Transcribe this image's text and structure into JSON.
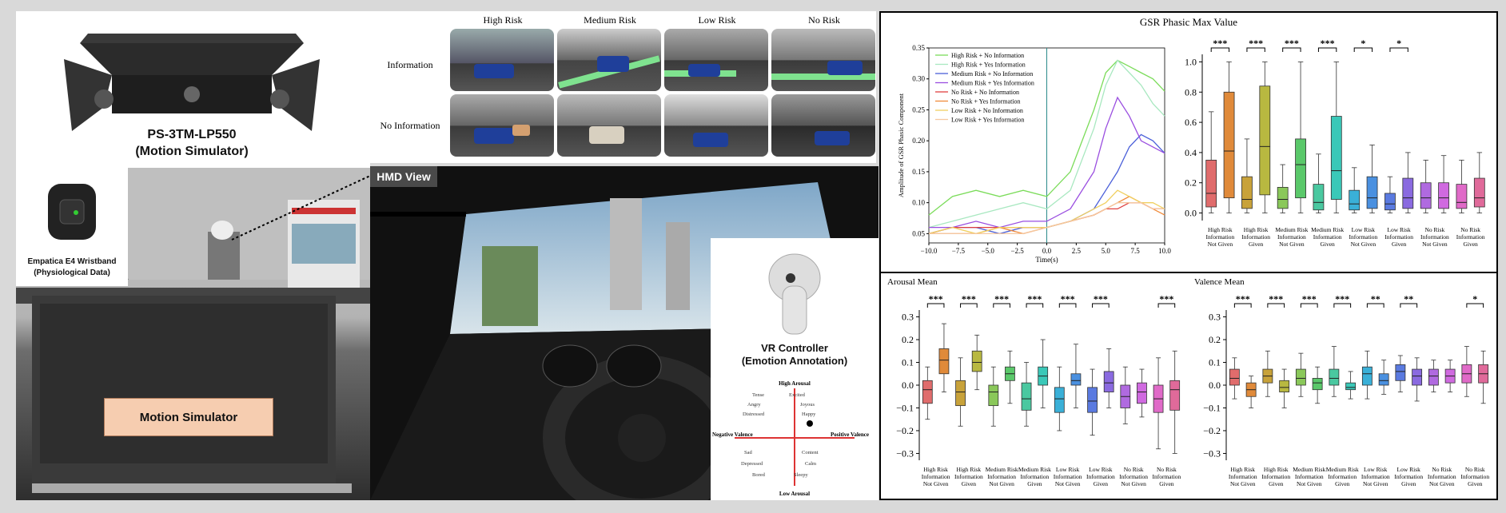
{
  "simulator": {
    "model": "PS-3TM-LP550",
    "caption": "(Motion Simulator)",
    "wristband_label": "Empatica E4 Wristband",
    "wristband_sub": "(Physiological Data)",
    "box_label": "Motion Simulator"
  },
  "scenarios": {
    "columns": [
      "High Risk",
      "Medium Risk",
      "Low Risk",
      "No Risk"
    ],
    "rows": [
      "Information",
      "No Information"
    ]
  },
  "hmd": {
    "tag": "HMD View",
    "controller_label": "VR Controller",
    "controller_sub": "(Emotion Annotation)",
    "circumplex": {
      "top": "High Arousal",
      "bottom": "Low Arousal",
      "left": "Negative Valence",
      "right": "Positive Valence",
      "emotions": [
        "Tense",
        "Excited",
        "Angry",
        "Joyous",
        "Distressed",
        "Happy",
        "Sad",
        "Content",
        "Depressed",
        "Calm",
        "Bored",
        "Sleepy"
      ]
    }
  },
  "chart_data": [
    {
      "type": "line",
      "title": "GSR Phasic Max Value",
      "xlabel": "Time(s)",
      "ylabel": "Amplitude of GSR Phasic Component",
      "xlim": [
        -10,
        10
      ],
      "ylim": [
        0.035,
        0.35
      ],
      "xticks": [
        "−10.0",
        "−7.5",
        "−5.0",
        "−2.5",
        "0.0",
        "2.5",
        "5.0",
        "7.5",
        "10.0"
      ],
      "yticks": [
        "0.05",
        "0.10",
        "0.15",
        "0.20",
        "0.25",
        "0.30",
        "0.35"
      ],
      "x": [
        -10,
        -8,
        -6,
        -4,
        -2,
        0,
        2,
        4,
        5,
        6,
        7,
        8,
        9,
        10
      ],
      "series": [
        {
          "name": "High Risk + No Information",
          "color": "#7bdc5a",
          "values": [
            0.08,
            0.11,
            0.12,
            0.11,
            0.12,
            0.11,
            0.15,
            0.25,
            0.31,
            0.33,
            0.32,
            0.31,
            0.3,
            0.28
          ]
        },
        {
          "name": "High Risk + Yes Information",
          "color": "#a8e8c0",
          "values": [
            0.06,
            0.07,
            0.08,
            0.09,
            0.1,
            0.09,
            0.12,
            0.22,
            0.29,
            0.33,
            0.31,
            0.29,
            0.26,
            0.24
          ]
        },
        {
          "name": "Medium Risk + No Information",
          "color": "#4a5fd9",
          "values": [
            0.05,
            0.06,
            0.06,
            0.05,
            0.06,
            0.06,
            0.07,
            0.09,
            0.12,
            0.15,
            0.19,
            0.21,
            0.2,
            0.18
          ]
        },
        {
          "name": "Medium Risk + Yes Information",
          "color": "#9a4ee0",
          "values": [
            0.06,
            0.06,
            0.07,
            0.06,
            0.07,
            0.07,
            0.09,
            0.15,
            0.22,
            0.27,
            0.24,
            0.2,
            0.19,
            0.18
          ]
        },
        {
          "name": "No Risk + No Information",
          "color": "#e04040",
          "values": [
            0.05,
            0.06,
            0.06,
            0.06,
            0.06,
            0.06,
            0.07,
            0.08,
            0.09,
            0.09,
            0.1,
            0.1,
            0.09,
            0.09
          ]
        },
        {
          "name": "No Risk + Yes Information",
          "color": "#f08a3a",
          "values": [
            0.05,
            0.05,
            0.05,
            0.06,
            0.05,
            0.06,
            0.07,
            0.08,
            0.09,
            0.1,
            0.11,
            0.1,
            0.09,
            0.08
          ]
        },
        {
          "name": "Low Risk + No Information",
          "color": "#f0d060",
          "values": [
            0.05,
            0.06,
            0.05,
            0.06,
            0.06,
            0.06,
            0.07,
            0.09,
            0.1,
            0.12,
            0.11,
            0.1,
            0.1,
            0.09
          ]
        },
        {
          "name": "Low Risk + Yes Information",
          "color": "#f5c8a0",
          "values": [
            0.05,
            0.05,
            0.05,
            0.05,
            0.05,
            0.06,
            0.07,
            0.08,
            0.09,
            0.1,
            0.1,
            0.1,
            0.09,
            0.09
          ]
        }
      ]
    },
    {
      "type": "box",
      "ylim": [
        -0.05,
        1.05
      ],
      "yticks": [
        "0.0",
        "0.2",
        "0.4",
        "0.6",
        "0.8",
        "1.0"
      ],
      "categories": [
        "High Risk Information Not Given",
        "High Risk Information Given",
        "Medium Risk Information Not Given",
        "Medium Risk Information Given",
        "Low Risk Information Not Given",
        "Low Risk Information Given",
        "No Risk Information Not Given",
        "No Risk Information Given"
      ],
      "significance": [
        "***",
        "***",
        "***",
        "***",
        "*",
        "*"
      ],
      "boxes": [
        {
          "color": "#e06c6c",
          "min": 0.0,
          "q1": 0.04,
          "median": 0.13,
          "q3": 0.35,
          "max": 0.67
        },
        {
          "color": "#e08a3a",
          "min": 0.0,
          "q1": 0.1,
          "median": 0.41,
          "q3": 0.8,
          "max": 1.0
        },
        {
          "color": "#c8a23a",
          "min": 0.0,
          "q1": 0.03,
          "median": 0.09,
          "q3": 0.24,
          "max": 0.49
        },
        {
          "color": "#b8b840",
          "min": 0.0,
          "q1": 0.12,
          "median": 0.44,
          "q3": 0.84,
          "max": 1.0
        },
        {
          "color": "#8ac85a",
          "min": 0.0,
          "q1": 0.03,
          "median": 0.09,
          "q3": 0.17,
          "max": 0.32
        },
        {
          "color": "#5ac86a",
          "min": 0.0,
          "q1": 0.1,
          "median": 0.32,
          "q3": 0.49,
          "max": 1.0
        },
        {
          "color": "#4ac8a0",
          "min": 0.0,
          "q1": 0.02,
          "median": 0.07,
          "q3": 0.19,
          "max": 0.39
        },
        {
          "color": "#3ac8b8",
          "min": 0.0,
          "q1": 0.09,
          "median": 0.28,
          "q3": 0.64,
          "max": 1.0
        },
        {
          "color": "#3ab0d8",
          "min": 0.0,
          "q1": 0.02,
          "median": 0.06,
          "q3": 0.15,
          "max": 0.3
        },
        {
          "color": "#4a90e0",
          "min": 0.0,
          "q1": 0.03,
          "median": 0.1,
          "q3": 0.24,
          "max": 0.45
        },
        {
          "color": "#5a7ae0",
          "min": 0.0,
          "q1": 0.02,
          "median": 0.06,
          "q3": 0.13,
          "max": 0.24
        },
        {
          "color": "#8a6ae0",
          "min": 0.0,
          "q1": 0.03,
          "median": 0.1,
          "q3": 0.23,
          "max": 0.4
        },
        {
          "color": "#b06ae0",
          "min": 0.0,
          "q1": 0.03,
          "median": 0.1,
          "q3": 0.2,
          "max": 0.35
        },
        {
          "color": "#d06ae0",
          "min": 0.0,
          "q1": 0.03,
          "median": 0.1,
          "q3": 0.2,
          "max": 0.38
        },
        {
          "color": "#e06ac8",
          "min": 0.0,
          "q1": 0.03,
          "median": 0.07,
          "q3": 0.19,
          "max": 0.35
        },
        {
          "color": "#e06a9a",
          "min": 0.0,
          "q1": 0.04,
          "median": 0.1,
          "q3": 0.23,
          "max": 0.4
        }
      ]
    },
    {
      "type": "box",
      "title": "Arousal Mean",
      "ylim": [
        -0.33,
        0.33
      ],
      "yticks": [
        "0.3",
        "0.2",
        "0.1",
        "0.0",
        "−0.1",
        "−0.2",
        "−0.3"
      ],
      "categories": [
        "High Risk Information Not Given",
        "High Risk Information Given",
        "Medium Risk Information Not Given",
        "Medium Risk Information Given",
        "Low Risk Information Not Given",
        "Low Risk Information Given",
        "No Risk Information Not Given",
        "No Risk Information Given"
      ],
      "significance": [
        "***",
        "***",
        "***",
        "***",
        "***",
        "***",
        "***"
      ],
      "boxes": [
        {
          "color": "#e06c6c",
          "min": -0.15,
          "q1": -0.08,
          "median": -0.02,
          "q3": 0.02,
          "max": 0.08
        },
        {
          "color": "#e08a3a",
          "min": -0.03,
          "q1": 0.05,
          "median": 0.11,
          "q3": 0.16,
          "max": 0.27
        },
        {
          "color": "#c8a23a",
          "min": -0.18,
          "q1": -0.09,
          "median": -0.03,
          "q3": 0.02,
          "max": 0.12
        },
        {
          "color": "#b8b840",
          "min": -0.02,
          "q1": 0.06,
          "median": 0.1,
          "q3": 0.15,
          "max": 0.22
        },
        {
          "color": "#8ac85a",
          "min": -0.18,
          "q1": -0.09,
          "median": -0.03,
          "q3": 0.0,
          "max": 0.08
        },
        {
          "color": "#5ac86a",
          "min": -0.08,
          "q1": 0.02,
          "median": 0.05,
          "q3": 0.08,
          "max": 0.15
        },
        {
          "color": "#4ac8a0",
          "min": -0.18,
          "q1": -0.11,
          "median": -0.06,
          "q3": 0.01,
          "max": 0.1
        },
        {
          "color": "#3ac8b8",
          "min": -0.1,
          "q1": 0.0,
          "median": 0.04,
          "q3": 0.08,
          "max": 0.2
        },
        {
          "color": "#3ab0d8",
          "min": -0.2,
          "q1": -0.12,
          "median": -0.06,
          "q3": -0.01,
          "max": 0.08
        },
        {
          "color": "#4a90e0",
          "min": -0.1,
          "q1": 0.0,
          "median": 0.02,
          "q3": 0.05,
          "max": 0.18
        },
        {
          "color": "#5a7ae0",
          "min": -0.22,
          "q1": -0.12,
          "median": -0.07,
          "q3": -0.01,
          "max": 0.07
        },
        {
          "color": "#8a6ae0",
          "min": -0.1,
          "q1": -0.03,
          "median": 0.01,
          "q3": 0.06,
          "max": 0.16
        },
        {
          "color": "#b06ae0",
          "min": -0.17,
          "q1": -0.1,
          "median": -0.05,
          "q3": 0.0,
          "max": 0.08
        },
        {
          "color": "#d06ae0",
          "min": -0.14,
          "q1": -0.08,
          "median": -0.03,
          "q3": 0.01,
          "max": 0.07
        },
        {
          "color": "#e06ac8",
          "min": -0.28,
          "q1": -0.12,
          "median": -0.06,
          "q3": 0.0,
          "max": 0.12
        },
        {
          "color": "#e06a9a",
          "min": -0.3,
          "q1": -0.11,
          "median": -0.02,
          "q3": 0.02,
          "max": 0.15
        }
      ]
    },
    {
      "type": "box",
      "title": "Valence Mean",
      "ylim": [
        -0.33,
        0.33
      ],
      "yticks": [
        "0.3",
        "0.2",
        "0.1",
        "0.0",
        "−0.1",
        "−0.2",
        "−0.3"
      ],
      "categories": [
        "High Risk Information Not Given",
        "High Risk Information Given",
        "Medium Risk Information Not Given",
        "Medium Risk Information Given",
        "Low Risk Information Not Given",
        "Low Risk Information Given",
        "No Risk Information Not Given",
        "No Risk Information Given"
      ],
      "significance": [
        "***",
        "***",
        "***",
        "***",
        "**",
        "**",
        "*"
      ],
      "boxes": [
        {
          "color": "#e06c6c",
          "min": -0.06,
          "q1": 0.0,
          "median": 0.03,
          "q3": 0.07,
          "max": 0.12
        },
        {
          "color": "#e08a3a",
          "min": -0.1,
          "q1": -0.05,
          "median": -0.02,
          "q3": 0.01,
          "max": 0.04
        },
        {
          "color": "#c8a23a",
          "min": -0.05,
          "q1": 0.01,
          "median": 0.04,
          "q3": 0.07,
          "max": 0.15
        },
        {
          "color": "#b8b840",
          "min": -0.1,
          "q1": -0.03,
          "median": -0.01,
          "q3": 0.02,
          "max": 0.07
        },
        {
          "color": "#8ac85a",
          "min": -0.05,
          "q1": 0.0,
          "median": 0.03,
          "q3": 0.07,
          "max": 0.14
        },
        {
          "color": "#5ac86a",
          "min": -0.08,
          "q1": -0.02,
          "median": 0.01,
          "q3": 0.03,
          "max": 0.08
        },
        {
          "color": "#4ac8a0",
          "min": -0.05,
          "q1": 0.0,
          "median": 0.03,
          "q3": 0.07,
          "max": 0.17
        },
        {
          "color": "#3ac8b8",
          "min": -0.06,
          "q1": -0.02,
          "median": -0.01,
          "q3": 0.01,
          "max": 0.06
        },
        {
          "color": "#3ab0d8",
          "min": -0.06,
          "q1": 0.0,
          "median": 0.05,
          "q3": 0.08,
          "max": 0.15
        },
        {
          "color": "#4a90e0",
          "min": -0.04,
          "q1": 0.0,
          "median": 0.02,
          "q3": 0.05,
          "max": 0.11
        },
        {
          "color": "#5a7ae0",
          "min": -0.03,
          "q1": 0.02,
          "median": 0.06,
          "q3": 0.09,
          "max": 0.13
        },
        {
          "color": "#8a6ae0",
          "min": -0.07,
          "q1": 0.0,
          "median": 0.04,
          "q3": 0.07,
          "max": 0.12
        },
        {
          "color": "#b06ae0",
          "min": -0.03,
          "q1": 0.0,
          "median": 0.04,
          "q3": 0.07,
          "max": 0.11
        },
        {
          "color": "#d06ae0",
          "min": -0.03,
          "q1": 0.01,
          "median": 0.04,
          "q3": 0.07,
          "max": 0.11
        },
        {
          "color": "#e06ac8",
          "min": -0.05,
          "q1": 0.01,
          "median": 0.05,
          "q3": 0.09,
          "max": 0.17
        },
        {
          "color": "#e06a9a",
          "min": -0.08,
          "q1": 0.01,
          "median": 0.05,
          "q3": 0.09,
          "max": 0.15
        }
      ]
    }
  ]
}
